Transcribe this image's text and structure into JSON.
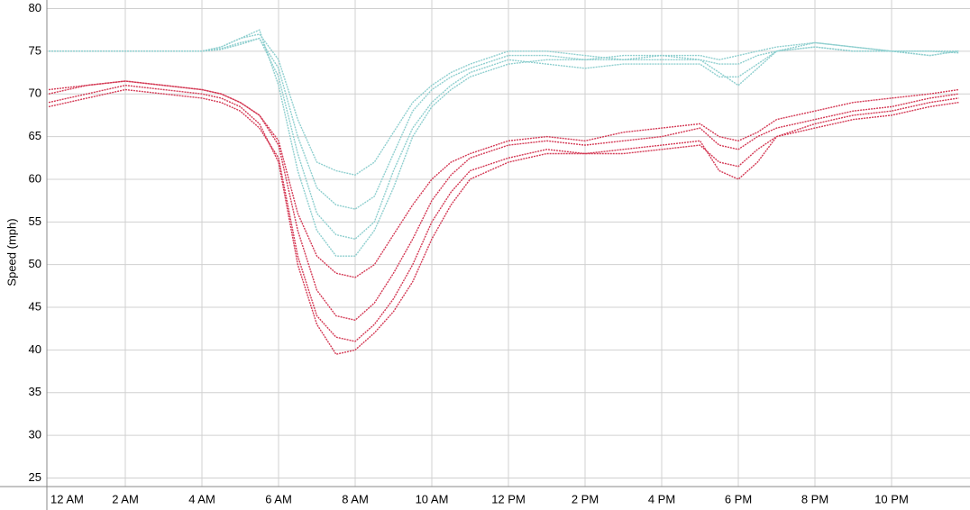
{
  "chart_data": {
    "type": "line",
    "y_label": "Speed (mph)",
    "x": [
      0,
      1,
      2,
      3,
      4,
      4.5,
      5,
      5.5,
      6,
      6.5,
      7,
      7.5,
      8,
      8.5,
      9,
      9.5,
      10,
      10.5,
      11,
      12,
      13,
      14,
      15,
      16,
      17,
      17.5,
      18,
      18.5,
      19,
      20,
      21,
      22,
      23,
      23.75
    ],
    "xlim": [
      0,
      24
    ],
    "xticks": [
      {
        "value": 0,
        "label": "12 AM"
      },
      {
        "value": 2,
        "label": "2 AM"
      },
      {
        "value": 4,
        "label": "4 AM"
      },
      {
        "value": 6,
        "label": "6 AM"
      },
      {
        "value": 8,
        "label": "8 AM"
      },
      {
        "value": 10,
        "label": "10 AM"
      },
      {
        "value": 12,
        "label": "12 PM"
      },
      {
        "value": 14,
        "label": "2 PM"
      },
      {
        "value": 16,
        "label": "4 PM"
      },
      {
        "value": 18,
        "label": "6 PM"
      },
      {
        "value": 20,
        "label": "8 PM"
      },
      {
        "value": 22,
        "label": "10 PM"
      }
    ],
    "ylim": [
      24,
      81
    ],
    "yticks": [
      25,
      30,
      35,
      40,
      45,
      50,
      55,
      60,
      65,
      70,
      75,
      80
    ],
    "grid": true,
    "series": [
      {
        "color": "#8fcfcf",
        "values": [
          75,
          75,
          75,
          75,
          75,
          75.5,
          76.5,
          77.5,
          71,
          61,
          54,
          51,
          51,
          54,
          59,
          65,
          68.5,
          70.5,
          72,
          73.5,
          74,
          74,
          74,
          74,
          74,
          72.5,
          71,
          73,
          75,
          76,
          75.5,
          75,
          74.5,
          75
        ]
      },
      {
        "color": "#8fcfcf",
        "values": [
          75,
          75,
          75,
          75,
          75,
          75.3,
          76,
          76.5,
          73,
          65,
          59,
          57,
          56.5,
          58,
          63,
          68,
          70.5,
          72,
          73,
          74.5,
          74.5,
          74,
          74.5,
          74.5,
          74,
          73.5,
          73.5,
          74.5,
          75,
          75.5,
          75,
          75,
          75,
          74.8
        ]
      },
      {
        "color": "#8fcfcf",
        "values": [
          75,
          75,
          75,
          75,
          75,
          75.5,
          76.5,
          77,
          74,
          67,
          62,
          61,
          60.5,
          62,
          65.5,
          69,
          71,
          72.5,
          73.5,
          75,
          75,
          74.5,
          74,
          74.5,
          74.5,
          74,
          74.5,
          75,
          75.5,
          76,
          75.5,
          75,
          75,
          75
        ]
      },
      {
        "color": "#8fcfcf",
        "values": [
          75,
          75,
          75,
          75,
          75,
          75.2,
          75.8,
          76.5,
          72,
          63,
          56,
          53.5,
          53,
          55,
          61,
          66,
          69,
          71,
          72.5,
          74,
          73.5,
          73,
          73.5,
          73.5,
          73.5,
          72,
          72,
          73.5,
          75,
          75.5,
          75,
          75,
          74.5,
          75
        ]
      },
      {
        "color": "#d43a55",
        "values": [
          69,
          70,
          71,
          70.5,
          70,
          69.5,
          68.5,
          66.5,
          62,
          50,
          43,
          39.5,
          40,
          42,
          44.5,
          48,
          53,
          57,
          60,
          62,
          63,
          63,
          63.5,
          64,
          64.5,
          61,
          60,
          62,
          65,
          66,
          67,
          67.5,
          68.5,
          69
        ]
      },
      {
        "color": "#d43a55",
        "values": [
          70,
          71,
          71.5,
          71,
          70.5,
          70,
          69,
          67.5,
          64,
          54,
          47,
          44,
          43.5,
          45.5,
          49,
          53,
          57.5,
          60.5,
          62.5,
          64,
          64.5,
          64,
          64.5,
          65,
          66,
          64,
          63.5,
          65,
          66,
          67,
          68,
          68.5,
          69.5,
          70
        ]
      },
      {
        "color": "#d43a55",
        "values": [
          70.5,
          71,
          71.5,
          71,
          70.5,
          70,
          69,
          67.5,
          64.5,
          56,
          51,
          49,
          48.5,
          50,
          53.5,
          57,
          60,
          62,
          63,
          64.5,
          65,
          64.5,
          65.5,
          66,
          66.5,
          65,
          64.5,
          65.5,
          67,
          68,
          69,
          69.5,
          70,
          70.5
        ]
      },
      {
        "color": "#d43a55",
        "values": [
          68.5,
          69.5,
          70.5,
          70,
          69.5,
          69,
          68,
          66,
          62.5,
          51,
          44,
          41.5,
          41,
          43,
          46,
          50,
          55,
          58.5,
          61,
          62.5,
          63.5,
          63,
          63,
          63.5,
          64,
          62,
          61.5,
          63.5,
          65,
          66.5,
          67.5,
          68,
          69,
          69.5
        ]
      }
    ]
  }
}
